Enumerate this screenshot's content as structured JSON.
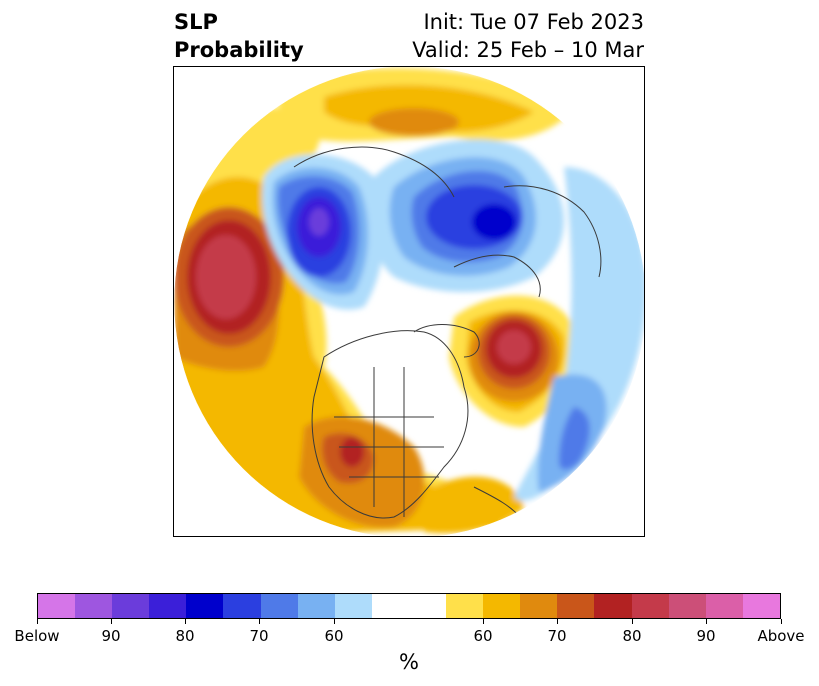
{
  "title": {
    "variable": "SLP",
    "subtitle": "Probability",
    "init": "Init: Tue 07 Feb 2023",
    "valid": "Valid: 25 Feb – 10 Mar"
  },
  "colorbar": {
    "unit": "%",
    "colors": [
      "#d575e8",
      "#9e56e0",
      "#6b3cdb",
      "#3b1fd9",
      "#0000cc",
      "#2b3fe0",
      "#4f7ae8",
      "#78b1f2",
      "#aedcfb",
      "#ffffff",
      "#ffffff",
      "#ffe04a",
      "#f4b800",
      "#e08a0e",
      "#c9561a",
      "#b22222",
      "#c43a4a",
      "#cc4f78",
      "#db5fa8",
      "#e878de"
    ],
    "tick_labels": [
      "Below",
      "90",
      "80",
      "70",
      "60",
      "60",
      "70",
      "80",
      "90",
      "Above"
    ]
  },
  "colors": {
    "land_border": "#3a3a3a",
    "background": "#ffffff"
  }
}
